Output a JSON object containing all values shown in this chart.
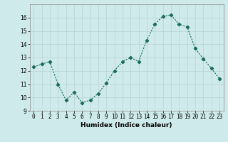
{
  "x": [
    0,
    1,
    2,
    3,
    4,
    5,
    6,
    7,
    8,
    9,
    10,
    11,
    12,
    13,
    14,
    15,
    16,
    17,
    18,
    19,
    20,
    21,
    22,
    23
  ],
  "y": [
    12.3,
    12.5,
    12.7,
    11.0,
    9.8,
    10.4,
    9.6,
    9.8,
    10.3,
    11.1,
    12.0,
    12.7,
    13.0,
    12.7,
    14.3,
    15.5,
    16.1,
    16.2,
    15.5,
    15.3,
    13.7,
    12.9,
    12.2,
    11.4
  ],
  "xlabel": "Humidex (Indice chaleur)",
  "ylim": [
    9,
    17
  ],
  "xlim": [
    -0.5,
    23.5
  ],
  "yticks": [
    9,
    10,
    11,
    12,
    13,
    14,
    15,
    16
  ],
  "xticks": [
    0,
    1,
    2,
    3,
    4,
    5,
    6,
    7,
    8,
    9,
    10,
    11,
    12,
    13,
    14,
    15,
    16,
    17,
    18,
    19,
    20,
    21,
    22,
    23
  ],
  "line_color": "#1a6b5a",
  "marker": "D",
  "marker_size": 2.2,
  "bg_color": "#ceeaea",
  "grid_color_major": "#b8d4d4",
  "grid_color_minor": "#c8e0e0",
  "label_fontsize": 6.5,
  "tick_fontsize": 5.5
}
